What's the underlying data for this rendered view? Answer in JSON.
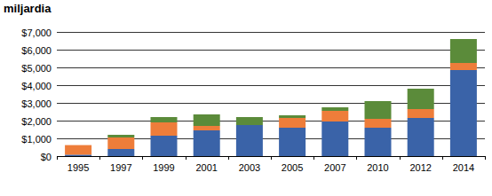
{
  "chart_data": {
    "type": "bar",
    "title": "miljardia",
    "stacked": true,
    "grid": true,
    "categories": [
      "1995",
      "1997",
      "1999",
      "2001",
      "2003",
      "2005",
      "2007",
      "2010",
      "2012",
      "2014"
    ],
    "series": [
      {
        "color": "#3a63a8",
        "values": [
          80,
          400,
          1150,
          1450,
          1750,
          1600,
          1950,
          1600,
          2150,
          4850
        ]
      },
      {
        "color": "#ee7d3a",
        "values": [
          540,
          650,
          750,
          250,
          0,
          550,
          600,
          500,
          500,
          400
        ]
      },
      {
        "color": "#5b8b3a",
        "values": [
          0,
          150,
          300,
          650,
          450,
          150,
          200,
          1000,
          1150,
          1350
        ]
      }
    ],
    "ylim": [
      0,
      7000
    ],
    "yticks": [
      {
        "value": 0,
        "label": "$0"
      },
      {
        "value": 1000,
        "label": "$1,000"
      },
      {
        "value": 2000,
        "label": "$2,000"
      },
      {
        "value": 3000,
        "label": "$3,000"
      },
      {
        "value": 4000,
        "label": "$4,000"
      },
      {
        "value": 5000,
        "label": "$5,000"
      },
      {
        "value": 6000,
        "label": "$6,000"
      },
      {
        "value": 7000,
        "label": "$7,000"
      }
    ]
  }
}
